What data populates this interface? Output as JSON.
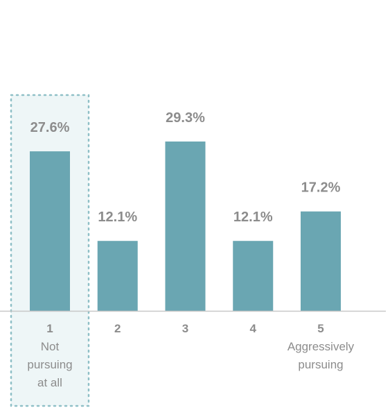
{
  "chart_data": {
    "type": "bar",
    "categories": [
      "1",
      "2",
      "3",
      "4",
      "5"
    ],
    "category_sublabels": [
      [
        "Not",
        "pursuing",
        "at all"
      ],
      [],
      [],
      [],
      [
        "Aggressively",
        "pursuing"
      ]
    ],
    "values": [
      27.6,
      12.1,
      29.3,
      12.1,
      17.2
    ],
    "value_labels": [
      "27.6%",
      "12.1%",
      "29.3%",
      "12.1%",
      "17.2%"
    ],
    "ylim": [
      0,
      40
    ],
    "grid": false,
    "highlighted_category": "1",
    "colors": {
      "bar": "#6aa6b2",
      "label": "#8c8c8c",
      "axis": "#c8c8c8",
      "highlight_fill": "#eef6f7",
      "highlight_border": "#8fc0c7"
    }
  }
}
